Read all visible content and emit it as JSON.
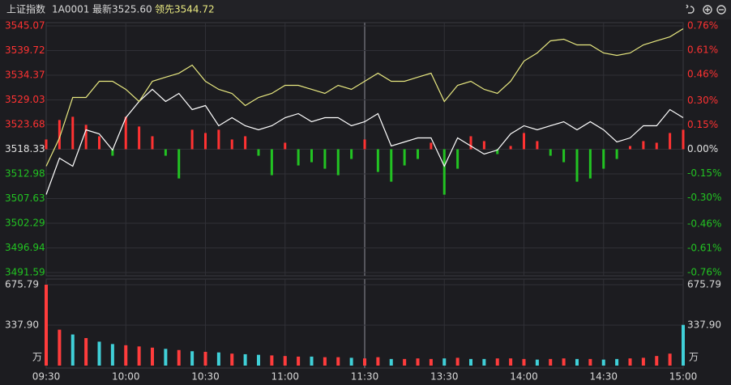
{
  "header": {
    "name": "上证指数",
    "code": "1A0001",
    "latest": "最新3525.60",
    "lead": "领先3544.72"
  },
  "chart_data": [
    {
      "type": "line",
      "x": [
        0,
        5,
        10,
        15,
        20,
        25,
        30,
        35,
        40,
        45,
        50,
        55,
        60,
        65,
        70,
        75,
        80,
        85,
        90,
        95,
        100,
        105,
        110,
        115,
        120,
        125,
        130,
        135,
        140,
        145,
        150,
        155,
        160,
        165,
        170,
        175,
        180,
        185,
        190,
        195,
        200,
        205,
        210,
        215,
        220,
        225,
        230,
        235,
        240
      ],
      "xlim": [
        0,
        240
      ],
      "ylim": [
        3491.59,
        3545.07
      ],
      "yticks": [
        3545.07,
        3539.72,
        3534.37,
        3529.03,
        3523.68,
        3518.33,
        3512.98,
        3507.63,
        3502.29,
        3496.94,
        3491.59
      ],
      "y2lim": [
        -0.76,
        0.76
      ],
      "y2ticks": [
        {
          "value": 0.76,
          "label": "0.76%"
        },
        {
          "value": 0.61,
          "label": "0.61%"
        },
        {
          "value": 0.46,
          "label": "0.46%"
        },
        {
          "value": 0.3,
          "label": "0.30%"
        },
        {
          "value": 0.15,
          "label": "0.15%"
        },
        {
          "value": 0,
          "label": "0.00%"
        },
        {
          "value": -0.15,
          "label": "-0.15%"
        },
        {
          "value": -0.3,
          "label": "-0.30%"
        },
        {
          "value": -0.46,
          "label": "-0.46%"
        },
        {
          "value": -0.61,
          "label": "-0.61%"
        },
        {
          "value": -0.76,
          "label": "-0.76%"
        }
      ],
      "up_color": "#ff3232",
      "down_color": "#22c322",
      "flat_color": "#e0e0e0",
      "grid": true,
      "series": [
        {
          "color": "#ffffff",
          "values": [
            3508.51,
            3516.4,
            3514.65,
            3522.54,
            3521.66,
            3518.15,
            3525.17,
            3528.68,
            3531.31,
            3528.68,
            3530.43,
            3526.92,
            3527.8,
            3523.42,
            3525.17,
            3523.42,
            3522.54,
            3523.42,
            3525.17,
            3526.05,
            3524.29,
            3525.17,
            3525.17,
            3523.42,
            3524.29,
            3526.05,
            3519.03,
            3519.91,
            3520.78,
            3520.78,
            3514.65,
            3520.78,
            3519.03,
            3517.28,
            3518.15,
            3521.66,
            3523.42,
            3522.54,
            3523.42,
            3524.29,
            3522.54,
            3524.29,
            3522.54,
            3519.91,
            3520.78,
            3523.42,
            3523.42,
            3526.92,
            3525.17
          ]
        },
        {
          "color": "#e8e880",
          "values": [
            3514.65,
            3520.78,
            3529.55,
            3529.55,
            3533.06,
            3533.06,
            3531.31,
            3528.68,
            3533.06,
            3533.94,
            3534.81,
            3536.57,
            3533.06,
            3531.31,
            3530.43,
            3527.8,
            3529.55,
            3530.43,
            3532.18,
            3532.18,
            3531.31,
            3530.43,
            3532.18,
            3531.31,
            3533.06,
            3534.81,
            3533.06,
            3533.06,
            3533.94,
            3534.81,
            3528.68,
            3532.18,
            3533.06,
            3531.31,
            3530.43,
            3533.06,
            3537.44,
            3539.2,
            3541.83,
            3542.18,
            3540.95,
            3540.95,
            3539.2,
            3538.67,
            3539.2,
            3540.95,
            3541.83,
            3542.7,
            3544.46
          ]
        },
        {
          "type": "bar",
          "axis": "y2",
          "values": [
            0.06,
            0.18,
            0.2,
            0.15,
            0.08,
            -0.04,
            0.2,
            0.14,
            0.08,
            -0.04,
            -0.18,
            0.12,
            0.1,
            0.12,
            0.06,
            0.08,
            -0.04,
            -0.16,
            0.04,
            -0.1,
            -0.08,
            -0.12,
            -0.16,
            -0.06,
            0.06,
            -0.14,
            -0.2,
            -0.1,
            -0.06,
            0.04,
            -0.28,
            -0.12,
            0.08,
            0.05,
            -0.03,
            0.02,
            0.1,
            0.05,
            -0.04,
            -0.08,
            -0.2,
            -0.18,
            -0.12,
            -0.06,
            0.02,
            0.05,
            0.04,
            0.1,
            0.12
          ]
        }
      ]
    },
    {
      "type": "bar",
      "x": [
        0,
        5,
        10,
        15,
        20,
        25,
        30,
        35,
        40,
        45,
        50,
        55,
        60,
        65,
        70,
        75,
        80,
        85,
        90,
        95,
        100,
        105,
        110,
        115,
        120,
        125,
        130,
        135,
        140,
        145,
        150,
        155,
        160,
        165,
        170,
        175,
        180,
        185,
        190,
        195,
        200,
        205,
        210,
        215,
        220,
        225,
        230,
        235,
        240
      ],
      "xlim": [
        0,
        240
      ],
      "xticks": [
        {
          "value": 0,
          "label": "09:30"
        },
        {
          "value": 30,
          "label": "10:00"
        },
        {
          "value": 60,
          "label": "10:30"
        },
        {
          "value": 90,
          "label": "11:00"
        },
        {
          "value": 120,
          "label": "11:30"
        },
        {
          "value": 150,
          "label": "13:30"
        },
        {
          "value": 180,
          "label": "14:00"
        },
        {
          "value": 210,
          "label": "14:30"
        },
        {
          "value": 240,
          "label": "15:00"
        }
      ],
      "ylim": [
        0,
        675.79
      ],
      "yticks": [
        {
          "value": 337.9,
          "label": "337.90"
        },
        675.79
      ],
      "unit": "万",
      "up_color": "#ff3c3c",
      "down_color": "#40d0d8",
      "values": [
        675.79,
        300,
        260,
        230,
        200,
        180,
        170,
        160,
        150,
        140,
        130,
        120,
        115,
        110,
        100,
        95,
        90,
        85,
        80,
        75,
        75,
        70,
        70,
        65,
        60,
        70,
        55,
        55,
        60,
        55,
        60,
        65,
        55,
        55,
        60,
        60,
        55,
        50,
        55,
        60,
        55,
        55,
        50,
        55,
        60,
        65,
        80,
        100,
        340
      ]
    }
  ]
}
